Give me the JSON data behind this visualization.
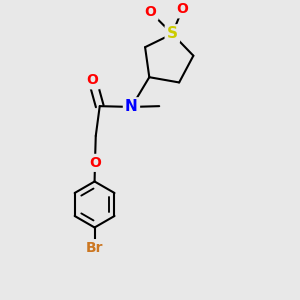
{
  "bg_color": "#e8e8e8",
  "bond_color": "#000000",
  "S_color": "#cccc00",
  "N_color": "#0000ff",
  "O_color": "#ff0000",
  "Br_color": "#cc7722",
  "line_width": 1.5,
  "figsize": [
    3.0,
    3.0
  ],
  "dpi": 100,
  "xlim": [
    -2.5,
    2.5
  ],
  "ylim": [
    -4.2,
    3.0
  ]
}
